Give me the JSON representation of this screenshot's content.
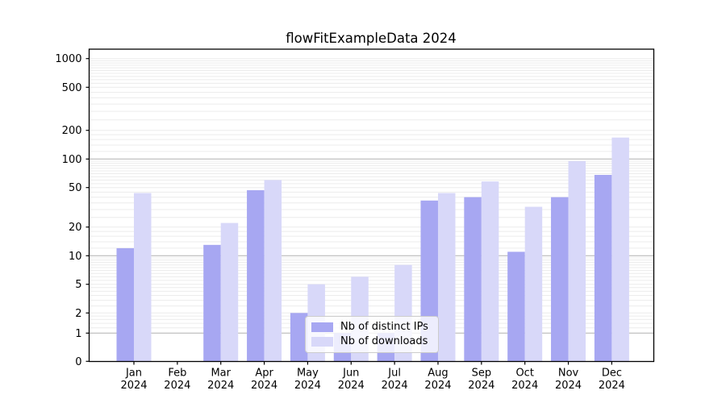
{
  "title": "flowFitExampleData 2024",
  "chart_data": {
    "type": "bar",
    "title": "flowFitExampleData 2024",
    "categories": [
      "Jan",
      "Feb",
      "Mar",
      "Apr",
      "May",
      "Jun",
      "Jul",
      "Aug",
      "Sep",
      "Oct",
      "Nov",
      "Dec"
    ],
    "category_year": "2024",
    "series": [
      {
        "name": "Nb of distinct IPs",
        "color": "#a7a7f2",
        "values": [
          12,
          0,
          13,
          47,
          2,
          1,
          1,
          37,
          40,
          11,
          40,
          68
        ]
      },
      {
        "name": "Nb of downloads",
        "color": "#d8d8f9",
        "values": [
          44,
          0,
          22,
          60,
          5,
          6,
          8,
          44,
          58,
          32,
          95,
          168
        ]
      }
    ],
    "y_ticks": [
      0,
      1,
      2,
      5,
      10,
      20,
      50,
      100,
      200,
      500,
      1000
    ],
    "y_scale": "log-like with 1-2-5 labelled ticks, 0 pinned at baseline",
    "ylim": [
      0,
      1300
    ],
    "grid": true,
    "major_grid_values": [
      1,
      10,
      100
    ],
    "legend_position": "lower center inside plot",
    "colors": {
      "axis": "#000000",
      "text": "#000000",
      "major_grid": "#b0b0b0",
      "minor_grid": "#ececec",
      "background": "#ffffff"
    }
  }
}
